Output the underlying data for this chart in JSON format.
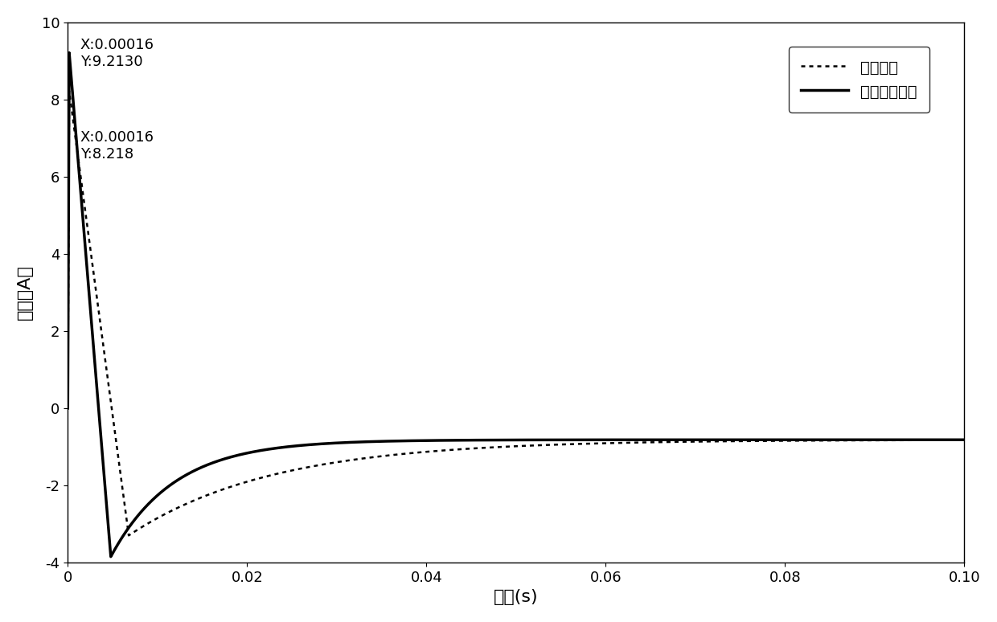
{
  "title": "",
  "xlabel": "时间(s)",
  "ylabel": "电流（A）",
  "xlim": [
    0,
    0.1
  ],
  "ylim": [
    -4,
    10
  ],
  "yticks": [
    -4,
    -2,
    0,
    2,
    4,
    6,
    8,
    10
  ],
  "xticks": [
    0,
    0.02,
    0.04,
    0.06,
    0.08,
    0.1
  ],
  "legend_labels": [
    "未加优化",
    "粒子算法优化"
  ],
  "annotation1": "X:0.00016\nY:9.2130",
  "annotation2": "X:0.00016\nY:8.218",
  "line_color": "black",
  "background_color": "white",
  "steady_state": -0.82,
  "peak_time": 0.00016,
  "peak_solid": 9.213,
  "peak_dotted": 8.218,
  "trough_time_solid": 0.0048,
  "trough_val_solid": -3.85,
  "trough_time_dotted": 0.0068,
  "trough_val_dotted": -3.3,
  "tau_solid": 0.007,
  "tau_dotted": 0.016
}
